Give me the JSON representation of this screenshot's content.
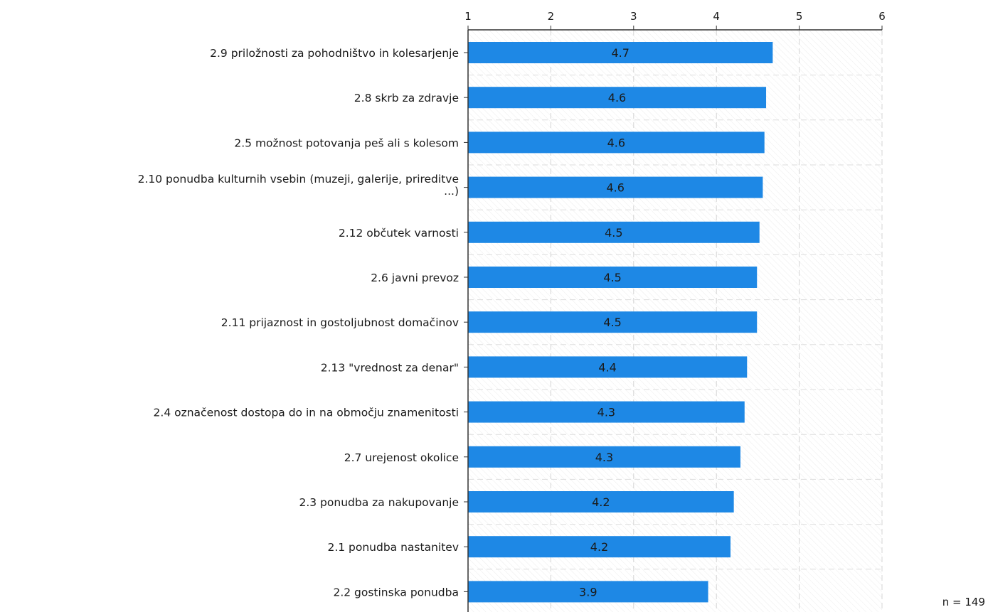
{
  "chart_data": {
    "type": "bar",
    "orientation": "horizontal",
    "title": "",
    "xlabel": "",
    "ylabel": "",
    "xlim": [
      1,
      6
    ],
    "x_ticks": [
      "1",
      "2",
      "3",
      "4",
      "5",
      "6"
    ],
    "grid": true,
    "bar_color": "#1e88e5",
    "categories": [
      [
        "2.9 priložnosti za pohodništvo in kolesarjenje"
      ],
      [
        "2.8 skrb za zdravje"
      ],
      [
        "2.5 možnost potovanja peš ali s kolesom"
      ],
      [
        "2.10 ponudba kulturnih vsebin (muzeji, galerije, prireditve",
        "...)"
      ],
      [
        "2.12 občutek varnosti"
      ],
      [
        "2.6 javni prevoz"
      ],
      [
        "2.11 prijaznost in gostoljubnost domačinov"
      ],
      [
        "2.13 \"vrednost za denar\""
      ],
      [
        "2.4 označenost dostopa do in na območju znamenitosti"
      ],
      [
        "2.7 urejenost okolice"
      ],
      [
        "2.3 ponudba za nakupovanje"
      ],
      [
        "2.1 ponudba nastanitev"
      ],
      [
        "2.2 gostinska ponudba"
      ]
    ],
    "values": [
      4.68,
      4.6,
      4.58,
      4.56,
      4.52,
      4.49,
      4.49,
      4.37,
      4.34,
      4.29,
      4.21,
      4.17,
      3.9
    ],
    "labels": [
      "4.7",
      "4.6",
      "4.6",
      "4.6",
      "4.5",
      "4.5",
      "4.5",
      "4.4",
      "4.3",
      "4.3",
      "4.2",
      "4.2",
      "3.9"
    ]
  },
  "sample_size": "n = 149"
}
